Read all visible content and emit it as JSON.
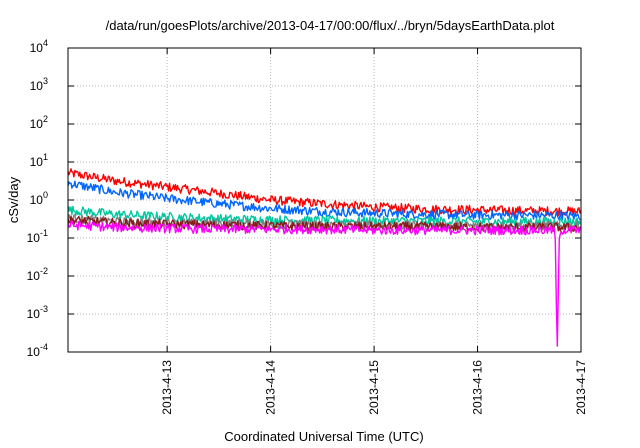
{
  "chart_data": {
    "type": "line",
    "title": "/data/run/goesPlots/archive/2013-04-17/00:00/flux/../bryn/5daysEarthData.plot",
    "xlabel": "Coordinated Universal Time (UTC)",
    "ylabel": "cSv/day",
    "y_scale": "log",
    "ylim": [
      0.0001,
      10000
    ],
    "y_ticks": [
      {
        "value": 0.0001,
        "base": "10",
        "exp": "-4"
      },
      {
        "value": 0.001,
        "base": "10",
        "exp": "-3"
      },
      {
        "value": 0.01,
        "base": "10",
        "exp": "-2"
      },
      {
        "value": 0.1,
        "base": "10",
        "exp": "-1"
      },
      {
        "value": 1,
        "base": "10",
        "exp": "0"
      },
      {
        "value": 10,
        "base": "10",
        "exp": "1"
      },
      {
        "value": 100,
        "base": "10",
        "exp": "2"
      },
      {
        "value": 1000,
        "base": "10",
        "exp": "3"
      },
      {
        "value": 10000,
        "base": "10",
        "exp": "4"
      }
    ],
    "xlim": [
      "2013-04-12 01:00",
      "2013-04-17 00:00"
    ],
    "x_ticks": [
      "2013-4-13",
      "2013-4-14",
      "2013-4-15",
      "2013-4-16",
      "2013-4-17"
    ],
    "grid": true,
    "legend": "none",
    "series": [
      {
        "color": "#ff0000",
        "x": [
          "2013-04-12 01:00",
          "2013-04-12 12:00",
          "2013-04-13 00:00",
          "2013-04-13 12:00",
          "2013-04-14 00:00",
          "2013-04-14 12:00",
          "2013-04-15 00:00",
          "2013-04-15 12:00",
          "2013-04-16 00:00",
          "2013-04-16 12:00",
          "2013-04-17 00:00"
        ],
        "values": [
          5.2,
          3.2,
          2.2,
          1.5,
          1.0,
          0.8,
          0.65,
          0.58,
          0.55,
          0.52,
          0.5
        ]
      },
      {
        "color": "#0066ff",
        "x": [
          "2013-04-12 01:00",
          "2013-04-12 12:00",
          "2013-04-13 00:00",
          "2013-04-13 12:00",
          "2013-04-14 00:00",
          "2013-04-14 12:00",
          "2013-04-15 00:00",
          "2013-04-15 12:00",
          "2013-04-16 00:00",
          "2013-04-16 12:00",
          "2013-04-17 00:00"
        ],
        "values": [
          2.8,
          1.6,
          1.1,
          0.8,
          0.6,
          0.5,
          0.45,
          0.42,
          0.4,
          0.4,
          0.38
        ]
      },
      {
        "color": "#00c8a0",
        "x": [
          "2013-04-12 01:00",
          "2013-04-12 12:00",
          "2013-04-13 00:00",
          "2013-04-13 12:00",
          "2013-04-14 00:00",
          "2013-04-14 12:00",
          "2013-04-15 00:00",
          "2013-04-15 12:00",
          "2013-04-16 00:00",
          "2013-04-16 12:00",
          "2013-04-17 00:00"
        ],
        "values": [
          0.55,
          0.42,
          0.36,
          0.32,
          0.3,
          0.29,
          0.28,
          0.28,
          0.27,
          0.27,
          0.27
        ]
      },
      {
        "color": "#7f7f7f",
        "x": [
          "2013-04-12 01:00",
          "2013-04-12 12:00",
          "2013-04-13 00:00",
          "2013-04-13 12:00",
          "2013-04-14 00:00",
          "2013-04-14 12:00",
          "2013-04-15 00:00",
          "2013-04-15 12:00",
          "2013-04-16 00:00",
          "2013-04-16 12:00",
          "2013-04-17 00:00"
        ],
        "values": [
          0.33,
          0.27,
          0.25,
          0.24,
          0.23,
          0.22,
          0.22,
          0.21,
          0.21,
          0.21,
          0.21
        ]
      },
      {
        "color": "#8b1a1a",
        "x": [
          "2013-04-12 01:00",
          "2013-04-12 12:00",
          "2013-04-13 00:00",
          "2013-04-13 12:00",
          "2013-04-14 00:00",
          "2013-04-14 12:00",
          "2013-04-15 00:00",
          "2013-04-15 12:00",
          "2013-04-16 00:00",
          "2013-04-16 12:00",
          "2013-04-17 00:00"
        ],
        "values": [
          0.3,
          0.25,
          0.23,
          0.22,
          0.21,
          0.2,
          0.2,
          0.2,
          0.19,
          0.19,
          0.19
        ]
      },
      {
        "color": "#ff00ff",
        "x": [
          "2013-04-12 01:00",
          "2013-04-12 12:00",
          "2013-04-13 00:00",
          "2013-04-13 12:00",
          "2013-04-14 00:00",
          "2013-04-14 12:00",
          "2013-04-15 00:00",
          "2013-04-15 12:00",
          "2013-04-16 00:00",
          "2013-04-16 12:00",
          "2013-04-16 18:00",
          "2013-04-16 18:30",
          "2013-04-16 19:00",
          "2013-04-17 00:00"
        ],
        "values": [
          0.22,
          0.19,
          0.18,
          0.17,
          0.17,
          0.17,
          0.16,
          0.16,
          0.16,
          0.16,
          0.16,
          0.0001,
          0.16,
          0.16
        ]
      }
    ]
  }
}
